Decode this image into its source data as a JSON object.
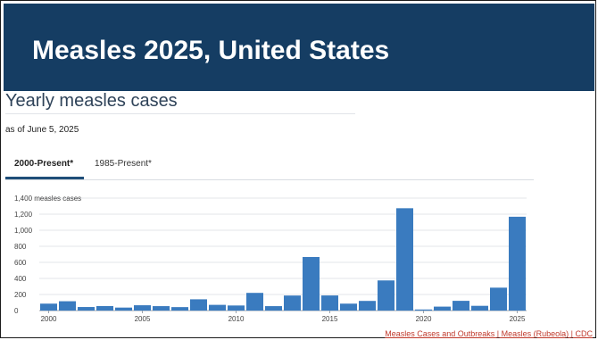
{
  "slide": {
    "title": "Measles 2025, United States",
    "header_color": "#153d63"
  },
  "section": {
    "title": "Yearly measles cases",
    "as_of": "as of June 5, 2025"
  },
  "tabs": [
    {
      "label": "2000-Present*",
      "active": true
    },
    {
      "label": "1985-Present*",
      "active": false
    }
  ],
  "footer": {
    "source_link": "Measles Cases and Outbreaks | Measles (Rubeola) | CDC"
  },
  "chart_data": {
    "type": "bar",
    "title": "",
    "xlabel": "",
    "ylabel": "measles cases",
    "ylim": [
      0,
      1400
    ],
    "yticks": [
      0,
      200,
      400,
      600,
      800,
      1000,
      1200,
      1400
    ],
    "ytick_labels": [
      "0",
      "200",
      "400",
      "600",
      "800",
      "1,000",
      "1,200",
      "1,400 measles cases"
    ],
    "x_tick_labels": [
      "2000",
      "2005",
      "2010",
      "2015",
      "2020",
      "2025"
    ],
    "grid": true,
    "bar_color": "#3a7bbf",
    "categories": [
      "2000",
      "2001",
      "2002",
      "2003",
      "2004",
      "2005",
      "2006",
      "2007",
      "2008",
      "2009",
      "2010",
      "2011",
      "2012",
      "2013",
      "2014",
      "2015",
      "2016",
      "2017",
      "2018",
      "2019",
      "2020",
      "2021",
      "2022",
      "2023",
      "2024",
      "2025"
    ],
    "values": [
      86,
      116,
      44,
      56,
      37,
      66,
      55,
      43,
      140,
      71,
      63,
      220,
      55,
      187,
      667,
      188,
      86,
      120,
      375,
      1274,
      13,
      49,
      121,
      59,
      285,
      1168
    ]
  }
}
